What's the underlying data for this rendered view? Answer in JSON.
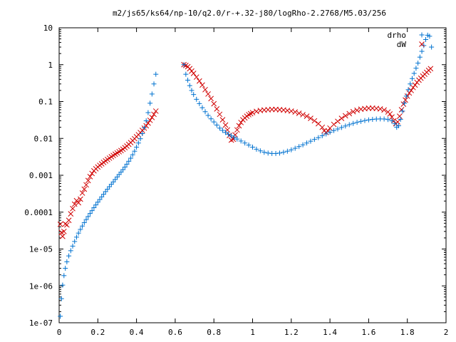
{
  "chart_data": {
    "type": "scatter",
    "title": "m2/js65/ks64/np-10/q2.0/r-+.32-j80/logRho-2.2768/M5.03/256",
    "xlabel": "",
    "ylabel": "",
    "xlim": [
      0,
      2
    ],
    "ylim": [
      1e-07,
      10
    ],
    "yscale": "log",
    "grid": false,
    "legend_position": "top-right",
    "x_ticks": [
      {
        "value": 0,
        "label": "0"
      },
      {
        "value": 0.2,
        "label": "0.2"
      },
      {
        "value": 0.4,
        "label": "0.4"
      },
      {
        "value": 0.6,
        "label": "0.6"
      },
      {
        "value": 0.8,
        "label": "0.8"
      },
      {
        "value": 1.0,
        "label": "1"
      },
      {
        "value": 1.2,
        "label": "1.2"
      },
      {
        "value": 1.4,
        "label": "1.4"
      },
      {
        "value": 1.6,
        "label": "1.6"
      },
      {
        "value": 1.8,
        "label": "1.8"
      },
      {
        "value": 2.0,
        "label": "2"
      }
    ],
    "y_ticks": [
      {
        "value": 1e-07,
        "label": "1e-07"
      },
      {
        "value": 1e-06,
        "label": "1e-06"
      },
      {
        "value": 1e-05,
        "label": "1e-05"
      },
      {
        "value": 0.0001,
        "label": "0.0001"
      },
      {
        "value": 0.001,
        "label": "0.001"
      },
      {
        "value": 0.01,
        "label": "0.01"
      },
      {
        "value": 0.1,
        "label": "0.1"
      },
      {
        "value": 1,
        "label": "1"
      },
      {
        "value": 10,
        "label": "10"
      }
    ],
    "series": [
      {
        "name": "drho",
        "marker": "plus",
        "color": "#0072d0",
        "points": [
          [
            0.006,
            1.5e-07
          ],
          [
            0.012,
            4.5e-07
          ],
          [
            0.018,
            1.05e-06
          ],
          [
            0.025,
            1.9e-06
          ],
          [
            0.032,
            3e-06
          ],
          [
            0.04,
            4.5e-06
          ],
          [
            0.05,
            6.5e-06
          ],
          [
            0.06,
            9e-06
          ],
          [
            0.07,
            1.2e-05
          ],
          [
            0.08,
            1.6e-05
          ],
          [
            0.09,
            2.1e-05
          ],
          [
            0.1,
            2.7e-05
          ],
          [
            0.11,
            3.4e-05
          ],
          [
            0.12,
            4.2e-05
          ],
          [
            0.13,
            5.2e-05
          ],
          [
            0.14,
            6.3e-05
          ],
          [
            0.15,
            7.6e-05
          ],
          [
            0.16,
            9.2e-05
          ],
          [
            0.17,
            0.00011
          ],
          [
            0.18,
            0.000132
          ],
          [
            0.19,
            0.000157
          ],
          [
            0.2,
            0.000187
          ],
          [
            0.21,
            0.00022
          ],
          [
            0.22,
            0.00026
          ],
          [
            0.23,
            0.000305
          ],
          [
            0.24,
            0.00036
          ],
          [
            0.25,
            0.00042
          ],
          [
            0.26,
            0.00049
          ],
          [
            0.27,
            0.00057
          ],
          [
            0.28,
            0.00066
          ],
          [
            0.29,
            0.00077
          ],
          [
            0.3,
            0.0009
          ],
          [
            0.31,
            0.00105
          ],
          [
            0.32,
            0.00122
          ],
          [
            0.33,
            0.00142
          ],
          [
            0.34,
            0.00167
          ],
          [
            0.35,
            0.002
          ],
          [
            0.36,
            0.0024
          ],
          [
            0.37,
            0.0029
          ],
          [
            0.38,
            0.0036
          ],
          [
            0.39,
            0.0045
          ],
          [
            0.4,
            0.0058
          ],
          [
            0.41,
            0.0075
          ],
          [
            0.42,
            0.0098
          ],
          [
            0.43,
            0.0135
          ],
          [
            0.44,
            0.0195
          ],
          [
            0.45,
            0.03
          ],
          [
            0.46,
            0.05
          ],
          [
            0.47,
            0.09
          ],
          [
            0.48,
            0.16
          ],
          [
            0.49,
            0.3
          ],
          [
            0.5,
            0.55
          ],
          [
            0.645,
            1.0
          ],
          [
            0.655,
            0.55
          ],
          [
            0.665,
            0.38
          ],
          [
            0.675,
            0.27
          ],
          [
            0.685,
            0.2
          ],
          [
            0.695,
            0.155
          ],
          [
            0.71,
            0.115
          ],
          [
            0.725,
            0.088
          ],
          [
            0.74,
            0.068
          ],
          [
            0.755,
            0.053
          ],
          [
            0.77,
            0.042
          ],
          [
            0.785,
            0.034
          ],
          [
            0.8,
            0.028
          ],
          [
            0.815,
            0.023
          ],
          [
            0.83,
            0.019
          ],
          [
            0.845,
            0.0165
          ],
          [
            0.86,
            0.0145
          ],
          [
            0.875,
            0.013
          ],
          [
            0.89,
            0.0117
          ],
          [
            0.905,
            0.0106
          ],
          [
            0.92,
            0.0096
          ],
          [
            0.94,
            0.0085
          ],
          [
            0.96,
            0.0075
          ],
          [
            0.98,
            0.0066
          ],
          [
            1.0,
            0.0058
          ],
          [
            1.02,
            0.0051
          ],
          [
            1.04,
            0.0046
          ],
          [
            1.06,
            0.0042
          ],
          [
            1.08,
            0.004
          ],
          [
            1.1,
            0.0039
          ],
          [
            1.12,
            0.0039
          ],
          [
            1.14,
            0.004
          ],
          [
            1.16,
            0.0042
          ],
          [
            1.18,
            0.0045
          ],
          [
            1.2,
            0.0049
          ],
          [
            1.22,
            0.0054
          ],
          [
            1.24,
            0.006
          ],
          [
            1.26,
            0.0067
          ],
          [
            1.28,
            0.0075
          ],
          [
            1.3,
            0.0084
          ],
          [
            1.32,
            0.0094
          ],
          [
            1.34,
            0.0105
          ],
          [
            1.36,
            0.0118
          ],
          [
            1.38,
            0.0132
          ],
          [
            1.4,
            0.0147
          ],
          [
            1.42,
            0.0163
          ],
          [
            1.44,
            0.018
          ],
          [
            1.46,
            0.0198
          ],
          [
            1.48,
            0.0217
          ],
          [
            1.5,
            0.0236
          ],
          [
            1.52,
            0.0255
          ],
          [
            1.54,
            0.0273
          ],
          [
            1.56,
            0.029
          ],
          [
            1.58,
            0.0305
          ],
          [
            1.6,
            0.0318
          ],
          [
            1.62,
            0.0328
          ],
          [
            1.64,
            0.0335
          ],
          [
            1.66,
            0.0338
          ],
          [
            1.68,
            0.0336
          ],
          [
            1.7,
            0.0325
          ],
          [
            1.72,
            0.03
          ],
          [
            1.735,
            0.025
          ],
          [
            1.745,
            0.02
          ],
          [
            1.755,
            0.022
          ],
          [
            1.765,
            0.033
          ],
          [
            1.775,
            0.055
          ],
          [
            1.785,
            0.09
          ],
          [
            1.795,
            0.14
          ],
          [
            1.805,
            0.21
          ],
          [
            1.815,
            0.3
          ],
          [
            1.825,
            0.42
          ],
          [
            1.835,
            0.58
          ],
          [
            1.845,
            0.8
          ],
          [
            1.855,
            1.1
          ],
          [
            1.865,
            1.6
          ],
          [
            1.875,
            2.3
          ],
          [
            1.885,
            3.3
          ],
          [
            1.895,
            4.8
          ],
          [
            1.905,
            6.3
          ],
          [
            1.915,
            5.9
          ],
          [
            1.925,
            3.0
          ]
        ]
      },
      {
        "name": "dW",
        "marker": "cross",
        "color": "#d00000",
        "points": [
          [
            0.006,
            4.7e-05
          ],
          [
            0.012,
            2.8e-05
          ],
          [
            0.018,
            2.2e-05
          ],
          [
            0.025,
            3e-05
          ],
          [
            0.032,
            4.8e-05
          ],
          [
            0.04,
            4.5e-05
          ],
          [
            0.05,
            6e-05
          ],
          [
            0.06,
            9e-05
          ],
          [
            0.07,
            0.000125
          ],
          [
            0.08,
            0.000165
          ],
          [
            0.09,
            0.000205
          ],
          [
            0.1,
            0.00018
          ],
          [
            0.11,
            0.000225
          ],
          [
            0.12,
            0.00033
          ],
          [
            0.13,
            0.00042
          ],
          [
            0.14,
            0.00055
          ],
          [
            0.15,
            0.00072
          ],
          [
            0.16,
            0.00092
          ],
          [
            0.17,
            0.00112
          ],
          [
            0.18,
            0.00132
          ],
          [
            0.19,
            0.0015
          ],
          [
            0.2,
            0.00168
          ],
          [
            0.21,
            0.00186
          ],
          [
            0.22,
            0.00204
          ],
          [
            0.23,
            0.00224
          ],
          [
            0.24,
            0.00245
          ],
          [
            0.25,
            0.00268
          ],
          [
            0.26,
            0.00292
          ],
          [
            0.27,
            0.00318
          ],
          [
            0.28,
            0.00345
          ],
          [
            0.29,
            0.00373
          ],
          [
            0.3,
            0.00403
          ],
          [
            0.31,
            0.00435
          ],
          [
            0.32,
            0.0047
          ],
          [
            0.33,
            0.0051
          ],
          [
            0.34,
            0.0056
          ],
          [
            0.35,
            0.0062
          ],
          [
            0.36,
            0.0069
          ],
          [
            0.37,
            0.0077
          ],
          [
            0.38,
            0.0087
          ],
          [
            0.39,
            0.0098
          ],
          [
            0.4,
            0.0111
          ],
          [
            0.41,
            0.0126
          ],
          [
            0.42,
            0.0144
          ],
          [
            0.43,
            0.0165
          ],
          [
            0.44,
            0.019
          ],
          [
            0.45,
            0.022
          ],
          [
            0.46,
            0.026
          ],
          [
            0.47,
            0.031
          ],
          [
            0.48,
            0.037
          ],
          [
            0.49,
            0.045
          ],
          [
            0.5,
            0.055
          ],
          [
            0.645,
            1.0
          ],
          [
            0.655,
            0.95
          ],
          [
            0.665,
            0.88
          ],
          [
            0.675,
            0.78
          ],
          [
            0.685,
            0.67
          ],
          [
            0.695,
            0.58
          ],
          [
            0.71,
            0.46
          ],
          [
            0.725,
            0.36
          ],
          [
            0.74,
            0.28
          ],
          [
            0.755,
            0.21
          ],
          [
            0.77,
            0.16
          ],
          [
            0.785,
            0.12
          ],
          [
            0.8,
            0.087
          ],
          [
            0.815,
            0.063
          ],
          [
            0.83,
            0.045
          ],
          [
            0.845,
            0.032
          ],
          [
            0.86,
            0.023
          ],
          [
            0.87,
            0.017
          ],
          [
            0.88,
            0.012
          ],
          [
            0.89,
            0.009
          ],
          [
            0.9,
            0.0095
          ],
          [
            0.91,
            0.0125
          ],
          [
            0.92,
            0.017
          ],
          [
            0.93,
            0.022
          ],
          [
            0.94,
            0.027
          ],
          [
            0.95,
            0.032
          ],
          [
            0.96,
            0.036
          ],
          [
            0.97,
            0.04
          ],
          [
            0.98,
            0.044
          ],
          [
            0.99,
            0.047
          ],
          [
            1.0,
            0.05
          ],
          [
            1.02,
            0.054
          ],
          [
            1.04,
            0.057
          ],
          [
            1.06,
            0.059
          ],
          [
            1.08,
            0.06
          ],
          [
            1.1,
            0.061
          ],
          [
            1.12,
            0.061
          ],
          [
            1.14,
            0.06
          ],
          [
            1.16,
            0.059
          ],
          [
            1.18,
            0.057
          ],
          [
            1.2,
            0.055
          ],
          [
            1.22,
            0.052
          ],
          [
            1.24,
            0.048
          ],
          [
            1.26,
            0.044
          ],
          [
            1.28,
            0.04
          ],
          [
            1.3,
            0.035
          ],
          [
            1.32,
            0.03
          ],
          [
            1.34,
            0.025
          ],
          [
            1.36,
            0.02
          ],
          [
            1.37,
            0.016
          ],
          [
            1.38,
            0.0145
          ],
          [
            1.39,
            0.016
          ],
          [
            1.4,
            0.019
          ],
          [
            1.42,
            0.024
          ],
          [
            1.44,
            0.029
          ],
          [
            1.46,
            0.035
          ],
          [
            1.48,
            0.041
          ],
          [
            1.5,
            0.047
          ],
          [
            1.52,
            0.053
          ],
          [
            1.54,
            0.058
          ],
          [
            1.56,
            0.062
          ],
          [
            1.58,
            0.064
          ],
          [
            1.6,
            0.066
          ],
          [
            1.62,
            0.066
          ],
          [
            1.64,
            0.065
          ],
          [
            1.66,
            0.063
          ],
          [
            1.68,
            0.059
          ],
          [
            1.7,
            0.052
          ],
          [
            1.71,
            0.046
          ],
          [
            1.72,
            0.038
          ],
          [
            1.73,
            0.03
          ],
          [
            1.74,
            0.025
          ],
          [
            1.75,
            0.028
          ],
          [
            1.76,
            0.04
          ],
          [
            1.77,
            0.06
          ],
          [
            1.78,
            0.085
          ],
          [
            1.79,
            0.11
          ],
          [
            1.8,
            0.14
          ],
          [
            1.81,
            0.17
          ],
          [
            1.82,
            0.2
          ],
          [
            1.83,
            0.24
          ],
          [
            1.84,
            0.28
          ],
          [
            1.85,
            0.33
          ],
          [
            1.86,
            0.38
          ],
          [
            1.87,
            0.43
          ],
          [
            1.88,
            0.49
          ],
          [
            1.89,
            0.55
          ],
          [
            1.9,
            0.62
          ],
          [
            1.91,
            0.7
          ],
          [
            1.92,
            0.78
          ]
        ]
      }
    ]
  }
}
